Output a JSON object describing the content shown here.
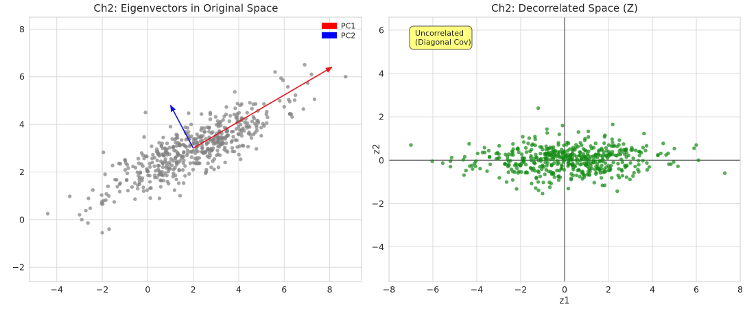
{
  "chart_data": [
    {
      "type": "scatter",
      "title": "Ch2: Eigenvectors in Original Space",
      "xlabel": "",
      "ylabel": "",
      "xlim": [
        -5.2,
        9.4
      ],
      "ylim": [
        -2.6,
        8.5
      ],
      "xticks": [
        -4,
        -2,
        0,
        2,
        4,
        6,
        8
      ],
      "yticks": [
        -2,
        0,
        2,
        4,
        6,
        8
      ],
      "grid": true,
      "legend_position": "top-right",
      "point_color": "#808080",
      "scatter_generator": {
        "count": 500,
        "mean": [
          2.0,
          3.0
        ],
        "principal_std": 2.05,
        "minor_std": 0.52,
        "angle_deg": 25,
        "seed": 11
      },
      "points": [
        [
          -4.4,
          0.25
        ],
        [
          -3.0,
          0.2
        ],
        [
          -2.9,
          0.0
        ],
        [
          -2.0,
          -0.55
        ],
        [
          -1.7,
          -0.4
        ],
        [
          8.7,
          6.0
        ],
        [
          6.9,
          6.5
        ],
        [
          7.2,
          6.1
        ],
        [
          5.6,
          6.2
        ],
        [
          -0.1,
          4.5
        ],
        [
          1.0,
          3.9
        ]
      ],
      "arrows": [
        {
          "name": "PC1",
          "color": "#e8141b",
          "from": [
            2.0,
            3.0
          ],
          "to": [
            8.1,
            6.4
          ]
        },
        {
          "name": "PC2",
          "color": "#1414e0",
          "from": [
            2.0,
            3.0
          ],
          "to": [
            1.0,
            4.8
          ]
        }
      ],
      "legend": [
        {
          "label": "PC1",
          "color": "#ff0000"
        },
        {
          "label": "PC2",
          "color": "#0000ff"
        }
      ]
    },
    {
      "type": "scatter",
      "title": "Ch2: Decorrelated Space (Z)",
      "xlabel": "z1",
      "ylabel": "z2",
      "xlim": [
        -8,
        8
      ],
      "ylim": [
        -5.6,
        6.6
      ],
      "xticks": [
        -8,
        -6,
        -4,
        -2,
        0,
        2,
        4,
        6,
        8
      ],
      "yticks": [
        -4,
        -2,
        0,
        2,
        4,
        6
      ],
      "grid": true,
      "axis_lines_at_zero": true,
      "point_color": "#138a13",
      "scatter_generator": {
        "count": 500,
        "mean": [
          0,
          0
        ],
        "principal_std": 2.05,
        "minor_std": 0.52,
        "angle_deg": 0,
        "seed": 23
      },
      "points": [
        [
          -7.0,
          0.7
        ],
        [
          7.3,
          -0.6
        ],
        [
          -1.2,
          2.4
        ],
        [
          6.0,
          0.7
        ],
        [
          5.9,
          0.55
        ],
        [
          6.1,
          0.0
        ]
      ],
      "annotation": {
        "lines": [
          "Uncorrelated",
          "(Diagonal Cov)"
        ],
        "color": "#ffff80"
      }
    }
  ]
}
